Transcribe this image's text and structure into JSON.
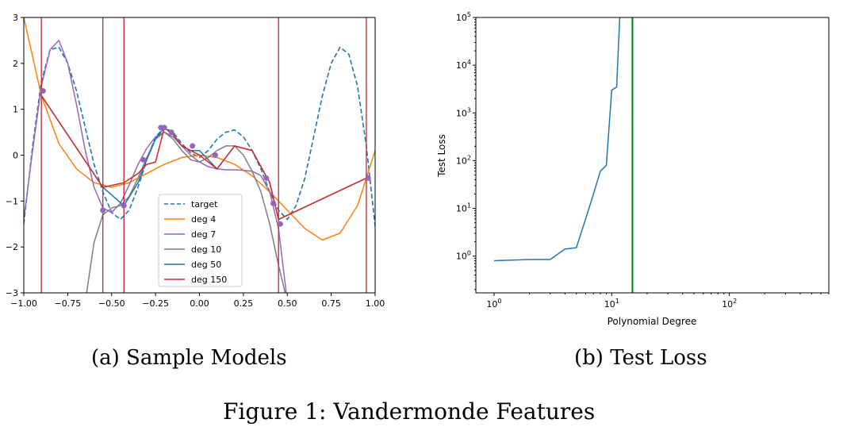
{
  "figure_caption": "Figure 1: Vandermonde Features",
  "subcaptions": {
    "a": "(a) Sample Models",
    "b": "(b) Test Loss"
  },
  "chart_data": [
    {
      "type": "line",
      "title": "",
      "xlabel": "",
      "ylabel": "",
      "xlim": [
        -1.0,
        1.0
      ],
      "ylim": [
        -3,
        3
      ],
      "x_ticks": [
        "−1.00",
        "−0.75",
        "−0.50",
        "−0.25",
        "0.00",
        "0.25",
        "0.50",
        "0.75",
        "1.00"
      ],
      "x_tick_values": [
        -1.0,
        -0.75,
        -0.5,
        -0.25,
        0.0,
        0.25,
        0.5,
        0.75,
        1.0
      ],
      "y_ticks": [
        "−3",
        "−2",
        "−1",
        "0",
        "1",
        "2",
        "3"
      ],
      "y_tick_values": [
        -3,
        -2,
        -1,
        0,
        1,
        2,
        3
      ],
      "legend_position": "lower-center",
      "series": [
        {
          "name": "target",
          "color": "#1f77b4",
          "dashed": true,
          "x": [
            -1.0,
            -0.95,
            -0.9,
            -0.85,
            -0.8,
            -0.75,
            -0.7,
            -0.65,
            -0.6,
            -0.55,
            -0.5,
            -0.45,
            -0.4,
            -0.35,
            -0.3,
            -0.25,
            -0.2,
            -0.15,
            -0.1,
            -0.05,
            0.0,
            0.05,
            0.1,
            0.15,
            0.2,
            0.25,
            0.3,
            0.35,
            0.4,
            0.45,
            0.5,
            0.55,
            0.6,
            0.65,
            0.7,
            0.75,
            0.8,
            0.85,
            0.9,
            0.95,
            1.0
          ],
          "y": [
            -1.5,
            0.2,
            1.6,
            2.3,
            2.35,
            2.0,
            1.4,
            0.6,
            -0.2,
            -0.8,
            -1.25,
            -1.4,
            -1.2,
            -0.7,
            -0.1,
            0.4,
            0.6,
            0.5,
            0.25,
            0.05,
            -0.05,
            0.1,
            0.35,
            0.5,
            0.55,
            0.4,
            0.1,
            -0.3,
            -0.8,
            -1.2,
            -1.4,
            -1.1,
            -0.5,
            0.4,
            1.3,
            2.0,
            2.35,
            2.2,
            1.5,
            0.2,
            -1.55
          ]
        },
        {
          "name": "deg 4",
          "color": "#ff7f0e",
          "dashed": false,
          "x": [
            -1.0,
            -0.9,
            -0.8,
            -0.7,
            -0.6,
            -0.5,
            -0.4,
            -0.3,
            -0.2,
            -0.1,
            0.0,
            0.1,
            0.2,
            0.3,
            0.4,
            0.5,
            0.6,
            0.7,
            0.8,
            0.9,
            1.0
          ],
          "y": [
            3.0,
            1.3,
            0.25,
            -0.3,
            -0.6,
            -0.7,
            -0.6,
            -0.4,
            -0.2,
            -0.05,
            0.0,
            -0.05,
            -0.2,
            -0.45,
            -0.8,
            -1.2,
            -1.6,
            -1.85,
            -1.7,
            -1.1,
            0.1
          ]
        },
        {
          "name": "deg 7",
          "color": "#9467bd",
          "dashed": false,
          "x": [
            -1.0,
            -0.95,
            -0.9,
            -0.85,
            -0.8,
            -0.75,
            -0.7,
            -0.65,
            -0.6,
            -0.55,
            -0.5,
            -0.45,
            -0.4,
            -0.35,
            -0.3,
            -0.25,
            -0.2,
            -0.15,
            -0.1,
            -0.05,
            0.0,
            0.05,
            0.1,
            0.15,
            0.2,
            0.25,
            0.3,
            0.35,
            0.4,
            0.45,
            0.5
          ],
          "y": [
            -1.4,
            0.1,
            1.5,
            2.3,
            2.5,
            2.0,
            1.1,
            0.1,
            -0.7,
            -1.15,
            -1.25,
            -1.05,
            -0.65,
            -0.2,
            0.15,
            0.4,
            0.5,
            0.4,
            0.2,
            0.0,
            -0.15,
            -0.25,
            -0.3,
            -0.32,
            -0.32,
            -0.33,
            -0.35,
            -0.45,
            -0.8,
            -1.6,
            -3.2
          ]
        },
        {
          "name": "deg 10",
          "color": "#7f7f7f",
          "dashed": false,
          "x": [
            -0.65,
            -0.6,
            -0.55,
            -0.5,
            -0.45,
            -0.4,
            -0.35,
            -0.3,
            -0.25,
            -0.2,
            -0.15,
            -0.1,
            -0.05,
            0.0,
            0.05,
            0.1,
            0.15,
            0.2,
            0.25,
            0.3,
            0.35,
            0.4,
            0.45,
            0.5
          ],
          "y": [
            -3.2,
            -1.9,
            -1.3,
            -1.15,
            -1.1,
            -0.9,
            -0.5,
            -0.05,
            0.35,
            0.5,
            0.35,
            0.1,
            -0.1,
            -0.15,
            -0.05,
            0.1,
            0.2,
            0.2,
            0.0,
            -0.35,
            -0.8,
            -1.5,
            -2.4,
            -3.2
          ]
        },
        {
          "name": "deg 50",
          "color": "#1f77b4",
          "dashed": false,
          "spikes": true,
          "x": [
            -0.9,
            -0.55,
            -0.43,
            -0.35,
            -0.3,
            -0.25,
            -0.2,
            -0.15,
            -0.1,
            -0.05,
            0.0,
            0.1,
            0.2,
            0.3,
            0.4,
            0.45,
            0.95
          ],
          "y": [
            1.3,
            -0.7,
            -1.1,
            -0.6,
            -0.1,
            0.35,
            0.6,
            0.45,
            0.2,
            0.1,
            0.1,
            -0.3,
            0.2,
            0.1,
            -0.6,
            -1.4,
            -0.5
          ]
        },
        {
          "name": "deg 150",
          "color": "#d62728",
          "dashed": false,
          "spikes": true,
          "x": [
            -0.9,
            -0.55,
            -0.43,
            -0.35,
            -0.3,
            -0.25,
            -0.2,
            -0.15,
            -0.1,
            -0.05,
            0.0,
            0.1,
            0.2,
            0.3,
            0.4,
            0.45,
            0.95
          ],
          "y": [
            1.3,
            -0.7,
            -0.6,
            -0.4,
            -0.2,
            -0.15,
            0.6,
            0.45,
            0.2,
            0.1,
            0.0,
            -0.3,
            0.2,
            0.1,
            -0.6,
            -1.4,
            -0.5
          ]
        }
      ],
      "markers": {
        "x": [
          -0.89,
          -0.55,
          -0.43,
          -0.32,
          -0.22,
          -0.2,
          -0.16,
          -0.04,
          0.09,
          0.38,
          0.42,
          0.46,
          0.96
        ],
        "y": [
          1.4,
          -1.2,
          -1.1,
          -0.1,
          0.6,
          0.6,
          0.5,
          0.2,
          0.0,
          -0.5,
          -1.05,
          -1.5,
          -0.5
        ]
      }
    },
    {
      "type": "line",
      "title": "",
      "xlabel": "Polynomial Degree",
      "ylabel": "Test Loss",
      "x_scale": "log",
      "y_scale": "log",
      "xlim": [
        0.7,
        700
      ],
      "ylim": [
        0.17,
        100000
      ],
      "x_ticks": [
        {
          "base": "10",
          "exp": "0"
        },
        {
          "base": "10",
          "exp": "1"
        },
        {
          "base": "10",
          "exp": "2"
        }
      ],
      "x_tick_values": [
        1,
        10,
        100
      ],
      "y_ticks": [
        {
          "base": "10",
          "exp": "0"
        },
        {
          "base": "10",
          "exp": "1"
        },
        {
          "base": "10",
          "exp": "2"
        },
        {
          "base": "10",
          "exp": "3"
        },
        {
          "base": "10",
          "exp": "4"
        },
        {
          "base": "10",
          "exp": "5"
        }
      ],
      "y_tick_values": [
        1,
        10,
        100,
        1000,
        10000,
        100000
      ],
      "series": [
        {
          "name": "",
          "color": "#1f77b4",
          "x": [
            1,
            2,
            3,
            4,
            5,
            6,
            7,
            8,
            9,
            10,
            11,
            11.7
          ],
          "y": [
            0.8,
            0.85,
            0.85,
            1.4,
            1.5,
            6,
            20,
            60,
            80,
            3000,
            3500,
            100000
          ]
        },
        {
          "name": "",
          "color": "#008000",
          "vertical_line_x": 15
        }
      ]
    }
  ]
}
